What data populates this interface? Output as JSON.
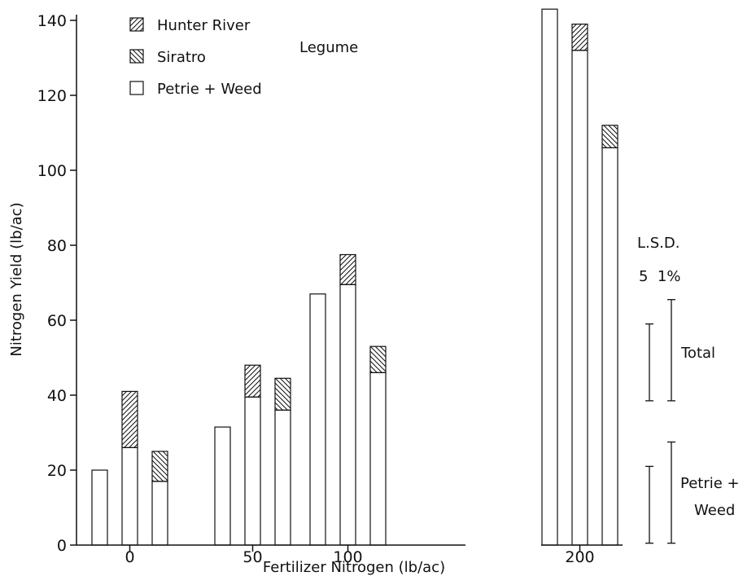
{
  "chart_data": {
    "type": "bar",
    "stacked": true,
    "xlabel": "Fertilizer Nitrogen (lb/ac)",
    "ylabel": "Nitrogen Yield (lb/ac)",
    "ylim": [
      0,
      143
    ],
    "yticks": [
      0,
      20,
      40,
      60,
      80,
      100,
      120,
      140
    ],
    "groups": [
      {
        "label": "0",
        "bars": [
          {
            "base": 20,
            "legume": 0,
            "legume_type": "none"
          },
          {
            "base": 26,
            "legume": 15,
            "legume_type": "hunter"
          },
          {
            "base": 17,
            "legume": 8,
            "legume_type": "siratro"
          }
        ]
      },
      {
        "label": "50",
        "bars": [
          {
            "base": 31.5,
            "legume": 0,
            "legume_type": "none"
          },
          {
            "base": 39.5,
            "legume": 8.5,
            "legume_type": "hunter"
          },
          {
            "base": 36,
            "legume": 8.5,
            "legume_type": "siratro"
          }
        ]
      },
      {
        "label": "100",
        "bars": [
          {
            "base": 67,
            "legume": 0,
            "legume_type": "none"
          },
          {
            "base": 69.5,
            "legume": 8,
            "legume_type": "hunter"
          },
          {
            "base": 46,
            "legume": 7,
            "legume_type": "siratro"
          }
        ]
      },
      {
        "label": "200",
        "bars": [
          {
            "base": 143,
            "legume": 0,
            "legume_type": "none"
          },
          {
            "base": 132,
            "legume": 7,
            "legume_type": "hunter"
          },
          {
            "base": 106,
            "legume": 6,
            "legume_type": "siratro"
          }
        ]
      }
    ],
    "legend": {
      "placement": "top-left",
      "items": [
        {
          "key": "hunter",
          "label": "Hunter River"
        },
        {
          "key": "siratro",
          "label": "Siratro"
        },
        {
          "key": "base",
          "label": "Petrie + Weed"
        }
      ],
      "group_label": "Legume"
    },
    "lsd": {
      "title": "L.S.D.",
      "levels": "5  1%",
      "total_label": "Total",
      "petrie_label_1": "Petrie +",
      "petrie_label_2": "Weed",
      "total": {
        "p5": [
          38.5,
          59
        ],
        "p1": [
          38.5,
          65.5
        ]
      },
      "petrie": {
        "p5": [
          0.5,
          21
        ],
        "p1": [
          0.5,
          27.5
        ]
      }
    },
    "colors": {
      "ink": "#111111",
      "bar_fill": "#ffffff"
    }
  }
}
